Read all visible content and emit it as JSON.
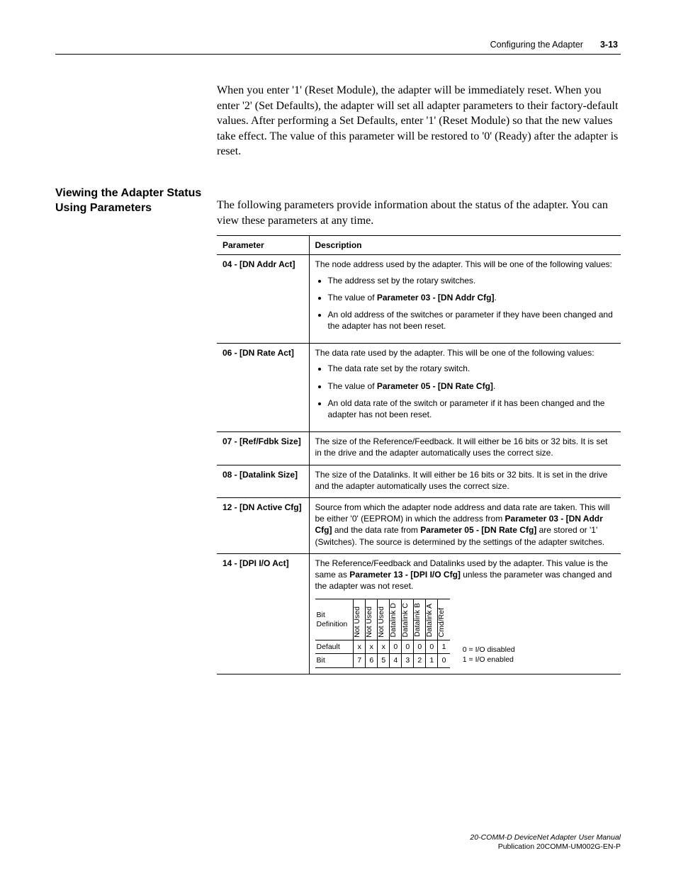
{
  "header": {
    "section_label": "Configuring the Adapter",
    "page_number": "3-13"
  },
  "intro_paragraph": "When you enter '1' (Reset Module), the adapter will be immediately reset. When you enter '2' (Set Defaults), the adapter will set all adapter parameters to their factory-default values. After performing a Set Defaults, enter '1' (Reset Module) so that the new values take effect. The value of this parameter will be restored to '0' (Ready) after the adapter is reset.",
  "section": {
    "heading": "Viewing the Adapter Status Using Parameters",
    "lead": "The following parameters provide information about the status of the adapter. You can view these parameters at any time."
  },
  "table": {
    "col_parameter": "Parameter",
    "col_description": "Description",
    "rows": {
      "r04": {
        "param": "04 - [DN Addr Act]",
        "desc_lead": "The node address used by the adapter. This will be one of the following values:",
        "b1": "The address set by the rotary switches.",
        "b2_pre": "The value of ",
        "b2_bold": "Parameter 03 - [DN Addr Cfg]",
        "b2_post": ".",
        "b3": "An old address of the switches or parameter if they have been changed and the adapter has not been reset."
      },
      "r06": {
        "param": "06 - [DN Rate Act]",
        "desc_lead": "The data rate used by the adapter. This will be one of the following values:",
        "b1": "The data rate set by the rotary switch.",
        "b2_pre": "The value of ",
        "b2_bold": "Parameter 05 - [DN Rate Cfg]",
        "b2_post": ".",
        "b3": "An old data rate of the switch or parameter if it has been changed and the adapter has not been reset."
      },
      "r07": {
        "param": "07 - [Ref/Fdbk Size]",
        "desc": "The size of the Reference/Feedback. It will either be 16 bits or 32 bits. It is set in the drive and the adapter automatically uses the correct size."
      },
      "r08": {
        "param": "08 - [Datalink Size]",
        "desc": "The size of the Datalinks. It will either be 16 bits or 32 bits. It is set in the drive and the adapter automatically uses the correct size."
      },
      "r12": {
        "param": "12 - [DN Active Cfg]",
        "pre": "Source from which the adapter node address and data rate are taken. This will be either '0' (EEPROM) in which the address from ",
        "bold1": "Parameter 03 - [DN Addr Cfg]",
        "mid": " and the data rate from ",
        "bold2": "Parameter 05 - [DN Rate Cfg]",
        "post": " are stored or '1' (Switches). The source is determined by the settings of the adapter switches."
      },
      "r14": {
        "param": "14 - [DPI I/O Act]",
        "pre": "The Reference/Feedback and Datalinks used by the adapter. This value is the same as ",
        "bold": "Parameter 13 - [DPI I/O Cfg]",
        "post": " unless the parameter was changed and the adapter was not reset."
      }
    }
  },
  "bitdef": {
    "row_bitdef_label": "Bit Definition",
    "row_default_label": "Default",
    "row_bit_label": "Bit",
    "headers": [
      "Not Used",
      "Not Used",
      "Not Used",
      "Datalink D",
      "Datalink C",
      "Datalink B",
      "Datalink A",
      "Cmd/Ref"
    ],
    "defaults": [
      "x",
      "x",
      "x",
      "0",
      "0",
      "0",
      "0",
      "1"
    ],
    "bits": [
      "7",
      "6",
      "5",
      "4",
      "3",
      "2",
      "1",
      "0"
    ],
    "legend_line1": "0 = I/O disabled",
    "legend_line2": "1 = I/O enabled"
  },
  "footer": {
    "manual": "20-COMM-D DeviceNet Adapter User Manual",
    "pub": "Publication 20COMM-UM002G-EN-P"
  }
}
